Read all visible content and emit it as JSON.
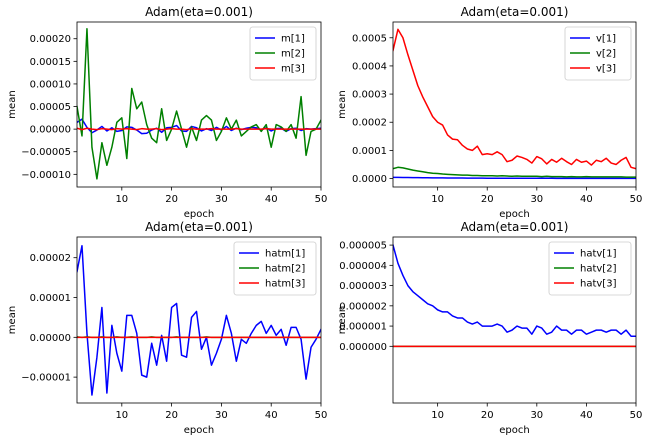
{
  "chart_data": [
    {
      "type": "line",
      "title": "Adam(eta=0.001)",
      "xlabel": "epoch",
      "ylabel": "mean",
      "xlim": [
        1,
        50
      ],
      "ylim": [
        -0.000128,
        0.000237
      ],
      "xticks": [
        10,
        20,
        30,
        40,
        50
      ],
      "xtick_labels": [
        "10",
        "20",
        "30",
        "40",
        "50"
      ],
      "yticks": [
        -0.0001,
        -5e-05,
        0,
        5e-05,
        0.0001,
        0.00015,
        0.0002
      ],
      "ytick_labels": [
        "−0.00010",
        "−0.00005",
        "0.00000",
        "0.00005",
        "0.00010",
        "0.00015",
        "0.00020"
      ],
      "legend_position": "top-right",
      "x": [
        1,
        2,
        3,
        4,
        5,
        6,
        7,
        8,
        9,
        10,
        11,
        12,
        13,
        14,
        15,
        16,
        17,
        18,
        19,
        20,
        21,
        22,
        23,
        24,
        25,
        26,
        27,
        28,
        29,
        30,
        31,
        32,
        33,
        34,
        35,
        36,
        37,
        38,
        39,
        40,
        41,
        42,
        43,
        44,
        45,
        46,
        47,
        48,
        49,
        50
      ],
      "series": [
        {
          "name": "m[1]",
          "color": "#0000ff",
          "values": [
            1.5e-05,
            2.2e-05,
            4e-06,
            -8e-06,
            -2e-06,
            6e-06,
            -4e-06,
            3e-06,
            -5e-06,
            -3e-06,
            5e-06,
            4e-06,
            -2e-06,
            -1e-05,
            -9e-06,
            -2e-06,
            2e-06,
            -7e-06,
            3e-06,
            4e-06,
            8e-06,
            -4e-06,
            -5e-06,
            6e-06,
            3e-06,
            -4e-06,
            1e-06,
            -3e-06,
            4e-06,
            -2e-06,
            6e-06,
            -3e-06,
            2e-06,
            -1e-06,
            2e-06,
            4e-06,
            3e-06,
            -2e-06,
            3e-06,
            -4e-06,
            1e-06,
            2e-06,
            -5e-06,
            1e-06,
            2e-06,
            -3e-06,
            1e-06,
            0.0,
            1e-06,
            2e-06
          ]
        },
        {
          "name": "m[2]",
          "color": "#008000",
          "values": [
            5e-05,
            -1.5e-05,
            0.000222,
            -4e-05,
            -0.00011,
            -3e-05,
            -8e-05,
            -4e-05,
            1.5e-05,
            2.5e-05,
            -6.5e-05,
            9e-05,
            4.5e-05,
            6e-05,
            1e-05,
            -2e-05,
            -3e-05,
            4.5e-05,
            -2.5e-05,
            0.0,
            4e-05,
            0.0,
            -4e-05,
            5e-06,
            -2.5e-05,
            2e-05,
            3e-05,
            2e-05,
            -2.5e-05,
            -5e-06,
            2.5e-05,
            0.0,
            2e-05,
            -1.5e-05,
            -5e-06,
            5e-06,
            1e-05,
            -5e-06,
            1e-05,
            -4e-05,
            1e-05,
            5e-06,
            -5e-06,
            1e-05,
            -2e-05,
            7.2e-05,
            -5.8e-05,
            -5e-06,
            0.0,
            2e-05
          ]
        },
        {
          "name": "m[3]",
          "color": "#ff0000",
          "values": [
            2e-06,
            -1e-06,
            2e-06,
            0.0,
            -1e-06,
            1e-06,
            0.0,
            -1e-06,
            1e-06,
            0.0,
            1e-06,
            0.0,
            -1e-06,
            1e-06,
            0.0,
            0.0,
            1e-06,
            -1e-06,
            0.0,
            1e-06,
            0.0,
            0.0,
            -1e-06,
            1e-06,
            0.0,
            0.0,
            0.0,
            1e-06,
            0.0,
            0.0,
            0.0,
            0.0,
            1e-06,
            0.0,
            0.0,
            0.0,
            0.0,
            0.0,
            1e-06,
            0.0,
            0.0,
            0.0,
            0.0,
            0.0,
            0.0,
            0.0,
            0.0,
            0.0,
            0.0,
            0.0
          ]
        }
      ]
    },
    {
      "type": "line",
      "title": "Adam(eta=0.001)",
      "xlabel": "epoch",
      "ylabel": "mean",
      "xlim": [
        1,
        50
      ],
      "ylim": [
        -3e-05,
        0.000556
      ],
      "xticks": [
        10,
        20,
        30,
        40,
        50
      ],
      "xtick_labels": [
        "10",
        "20",
        "30",
        "40",
        "50"
      ],
      "yticks": [
        0,
        0.0001,
        0.0002,
        0.0003,
        0.0004,
        0.0005
      ],
      "ytick_labels": [
        "0.0000",
        "0.0001",
        "0.0002",
        "0.0003",
        "0.0004",
        "0.0005"
      ],
      "legend_position": "top-right",
      "x": [
        1,
        2,
        3,
        4,
        5,
        6,
        7,
        8,
        9,
        10,
        11,
        12,
        13,
        14,
        15,
        16,
        17,
        18,
        19,
        20,
        21,
        22,
        23,
        24,
        25,
        26,
        27,
        28,
        29,
        30,
        31,
        32,
        33,
        34,
        35,
        36,
        37,
        38,
        39,
        40,
        41,
        42,
        43,
        44,
        45,
        46,
        47,
        48,
        49,
        50
      ],
      "series": [
        {
          "name": "v[1]",
          "color": "#0000ff",
          "values": [
            4e-06,
            4e-06,
            3.8e-06,
            3.6e-06,
            3.4e-06,
            3.2e-06,
            3e-06,
            2.8e-06,
            2.6e-06,
            2.4e-06,
            2.2e-06,
            2.1e-06,
            2e-06,
            1.9e-06,
            1.8e-06,
            1.7e-06,
            1.6e-06,
            1.5e-06,
            1.4e-06,
            1.3e-06,
            1.3e-06,
            1.2e-06,
            1.2e-06,
            1.1e-06,
            1.1e-06,
            1e-06,
            1e-06,
            1e-06,
            1e-06,
            9e-07,
            9e-07,
            9e-07,
            9e-07,
            8e-07,
            8e-07,
            8e-07,
            8e-07,
            8e-07,
            7e-07,
            7e-07,
            7e-07,
            7e-07,
            7e-07,
            7e-07,
            6e-07,
            6e-07,
            6e-07,
            6e-07,
            6e-07,
            6e-07
          ]
        },
        {
          "name": "v[2]",
          "color": "#008000",
          "values": [
            3.5e-05,
            4e-05,
            3.8e-05,
            3.4e-05,
            3e-05,
            2.7e-05,
            2.4e-05,
            2.1e-05,
            1.9e-05,
            1.8e-05,
            1.6e-05,
            1.5e-05,
            1.4e-05,
            1.3e-05,
            1.2e-05,
            1.2e-05,
            1.1e-05,
            1.1e-05,
            1e-05,
            1e-05,
            1e-05,
            9e-06,
            1e-05,
            9e-06,
            8e-06,
            9e-06,
            8e-06,
            8e-06,
            8e-06,
            8e-06,
            7e-06,
            8e-06,
            7e-06,
            7e-06,
            7e-06,
            6e-06,
            7e-06,
            6e-06,
            6e-06,
            7e-06,
            6e-06,
            6e-06,
            6e-06,
            6e-06,
            6e-06,
            6e-06,
            6e-06,
            5e-06,
            5e-06,
            5e-06
          ]
        },
        {
          "name": "v[3]",
          "color": "#ff0000",
          "values": [
            0.000455,
            0.00053,
            0.0005,
            0.00044,
            0.000385,
            0.00033,
            0.00029,
            0.000255,
            0.00022,
            0.0002,
            0.00019,
            0.000155,
            0.00014,
            0.000138,
            0.000118,
            0.000105,
            0.0001,
            0.000115,
            8.5e-05,
            8.8e-05,
            8.5e-05,
            9.5e-05,
            8.5e-05,
            6e-05,
            6.5e-05,
            8e-05,
            7.5e-05,
            6.8e-05,
            5.5e-05,
            7.8e-05,
            7e-05,
            5.2e-05,
            6.8e-05,
            5.8e-05,
            7.2e-05,
            6e-05,
            5e-05,
            6.8e-05,
            5.8e-05,
            6.2e-05,
            4.8e-05,
            6.5e-05,
            6e-05,
            7.2e-05,
            5.5e-05,
            5e-05,
            6.5e-05,
            7.5e-05,
            4e-05,
            3.5e-05
          ]
        }
      ]
    },
    {
      "type": "line",
      "title": "Adam(eta=0.001)",
      "xlabel": "epoch",
      "ylabel": "mean",
      "xlim": [
        1,
        50
      ],
      "ylim": [
        -1.65e-05,
        2.52e-05
      ],
      "xticks": [
        10,
        20,
        30,
        40,
        50
      ],
      "xtick_labels": [
        "10",
        "20",
        "30",
        "40",
        "50"
      ],
      "yticks": [
        -1e-05,
        0,
        1e-05,
        2e-05
      ],
      "ytick_labels": [
        "−0.00001",
        "0.00000",
        "0.00001",
        "0.00002"
      ],
      "legend_position": "top-right",
      "x": [
        1,
        2,
        3,
        4,
        5,
        6,
        7,
        8,
        9,
        10,
        11,
        12,
        13,
        14,
        15,
        16,
        17,
        18,
        19,
        20,
        21,
        22,
        23,
        24,
        25,
        26,
        27,
        28,
        29,
        30,
        31,
        32,
        33,
        34,
        35,
        36,
        37,
        38,
        39,
        40,
        41,
        42,
        43,
        44,
        45,
        46,
        47,
        48,
        49,
        50
      ],
      "series": [
        {
          "name": "hatm[1]",
          "color": "#0000ff",
          "values": [
            1.65e-05,
            2.3e-05,
            1e-06,
            -1.45e-05,
            -5e-06,
            7.5e-06,
            -1.4e-05,
            3e-06,
            -4e-06,
            -8.5e-06,
            5.5e-06,
            5.5e-06,
            1e-06,
            -9.5e-06,
            -1e-05,
            -1.5e-06,
            -7e-06,
            5e-07,
            -6e-06,
            7.5e-06,
            8.5e-06,
            -4.5e-06,
            -5e-06,
            5e-06,
            6.5e-06,
            -3e-06,
            0.0,
            -7e-06,
            -4e-06,
            -5e-07,
            5.5e-06,
            1e-06,
            -6e-06,
            -5e-07,
            -1.5e-06,
            1e-06,
            3e-06,
            4e-06,
            1e-06,
            3e-06,
            5e-07,
            2e-06,
            -2e-06,
            2.5e-06,
            2.5e-06,
            -5e-07,
            -1.05e-05,
            -2.5e-06,
            -5e-07,
            2e-06
          ]
        },
        {
          "name": "hatm[2]",
          "color": "#008000",
          "values": [
            1e-07,
            0.0,
            1e-07,
            0.0,
            0.0,
            1e-07,
            0.0,
            0.0,
            1e-07,
            0.0,
            0.0,
            1e-07,
            0.0,
            0.0,
            0.0,
            1e-07,
            0.0,
            0.0,
            0.0,
            0.0,
            1e-07,
            0.0,
            0.0,
            0.0,
            0.0,
            0.0,
            1e-07,
            0.0,
            0.0,
            0.0,
            0.0,
            0.0,
            0.0,
            0.0,
            0.0,
            0.0,
            0.0,
            0.0,
            0.0,
            0.0,
            0.0,
            0.0,
            0.0,
            0.0,
            0.0,
            0.0,
            0.0,
            0.0,
            0.0,
            0.0
          ]
        },
        {
          "name": "hatm[3]",
          "color": "#ff0000",
          "values": [
            0,
            0,
            0,
            0,
            0,
            0,
            0,
            0,
            0,
            0,
            0,
            0,
            0,
            0,
            0,
            0,
            0,
            0,
            0,
            0,
            0,
            0,
            0,
            0,
            0,
            0,
            0,
            0,
            0,
            0,
            0,
            0,
            0,
            0,
            0,
            0,
            0,
            0,
            0,
            0,
            0,
            0,
            0,
            0,
            0,
            0,
            0,
            0,
            0,
            0
          ]
        }
      ]
    },
    {
      "type": "line",
      "title": "Adam(eta=0.001)",
      "xlabel": "epoch",
      "ylabel": "mean",
      "xlim": [
        1,
        50
      ],
      "ylim": [
        -2.8e-06,
        5.4e-06
      ],
      "xticks": [
        10,
        20,
        30,
        40,
        50
      ],
      "xtick_labels": [
        "10",
        "20",
        "30",
        "40",
        "50"
      ],
      "yticks": [
        0,
        1e-06,
        2e-06,
        3e-06,
        4e-06,
        5e-06
      ],
      "ytick_labels": [
        "0.000000",
        "0.000001",
        "0.000002",
        "0.000003",
        "0.000004",
        "0.000005"
      ],
      "legend_position": "top-right",
      "x": [
        1,
        2,
        3,
        4,
        5,
        6,
        7,
        8,
        9,
        10,
        11,
        12,
        13,
        14,
        15,
        16,
        17,
        18,
        19,
        20,
        21,
        22,
        23,
        24,
        25,
        26,
        27,
        28,
        29,
        30,
        31,
        32,
        33,
        34,
        35,
        36,
        37,
        38,
        39,
        40,
        41,
        42,
        43,
        44,
        45,
        46,
        47,
        48,
        49,
        50
      ],
      "series": [
        {
          "name": "hatv[1]",
          "color": "#0000ff",
          "values": [
            5e-06,
            4.1e-06,
            3.5e-06,
            3e-06,
            2.7e-06,
            2.5e-06,
            2.3e-06,
            2.1e-06,
            2e-06,
            1.8e-06,
            1.7e-06,
            1.7e-06,
            1.5e-06,
            1.4e-06,
            1.4e-06,
            1.2e-06,
            1.1e-06,
            1.2e-06,
            1e-06,
            1e-06,
            1e-06,
            1.1e-06,
            1e-06,
            7e-07,
            8e-07,
            1e-06,
            9e-07,
            9e-07,
            6e-07,
            1e-06,
            9e-07,
            6e-07,
            7e-07,
            1e-06,
            8e-07,
            8e-07,
            6e-07,
            8e-07,
            8e-07,
            6e-07,
            7e-07,
            8e-07,
            8e-07,
            7e-07,
            8e-07,
            8e-07,
            6e-07,
            8e-07,
            5e-07,
            5e-07
          ]
        },
        {
          "name": "hatv[2]",
          "color": "#008000",
          "values": [
            0,
            0,
            0,
            0,
            0,
            0,
            0,
            0,
            0,
            0,
            0,
            0,
            0,
            0,
            0,
            0,
            0,
            0,
            0,
            0,
            0,
            0,
            0,
            0,
            0,
            0,
            0,
            0,
            0,
            0,
            0,
            0,
            0,
            0,
            0,
            0,
            0,
            0,
            0,
            0,
            0,
            0,
            0,
            0,
            0,
            0,
            0,
            0,
            0,
            0
          ]
        },
        {
          "name": "hatv[3]",
          "color": "#ff0000",
          "values": [
            0,
            0,
            0,
            0,
            0,
            0,
            0,
            0,
            0,
            0,
            0,
            0,
            0,
            0,
            0,
            0,
            0,
            0,
            0,
            0,
            0,
            0,
            0,
            0,
            0,
            0,
            0,
            0,
            0,
            0,
            0,
            0,
            0,
            0,
            0,
            0,
            0,
            0,
            0,
            0,
            0,
            0,
            0,
            0,
            0,
            0,
            0,
            0,
            0,
            0
          ]
        }
      ]
    }
  ]
}
